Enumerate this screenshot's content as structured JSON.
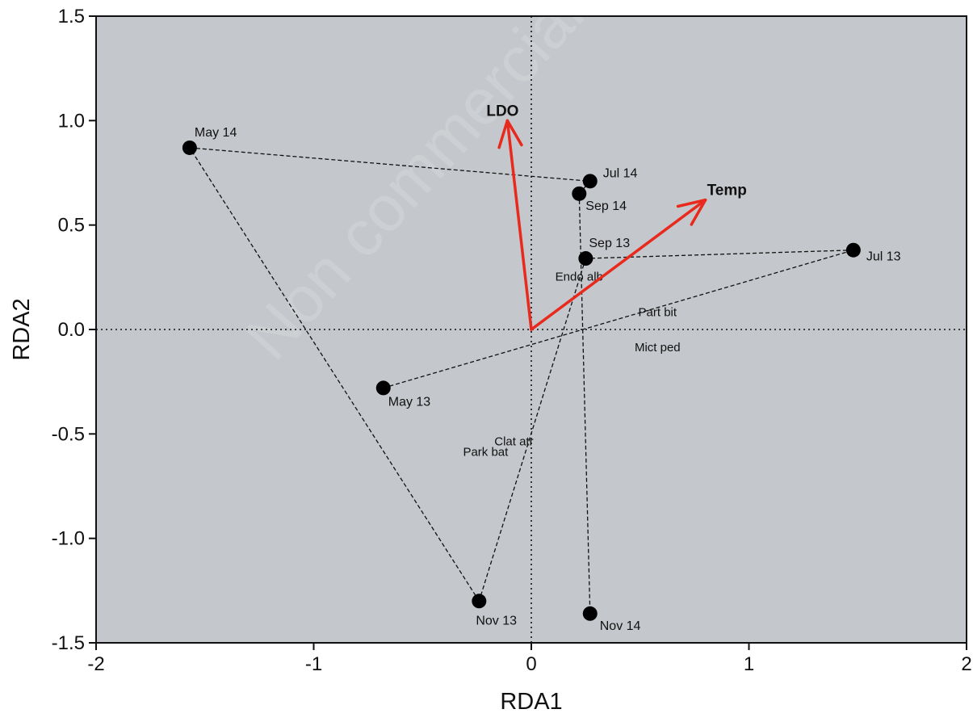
{
  "chart_data": {
    "type": "scatter",
    "xlabel": "RDA1",
    "ylabel": "RDA2",
    "xlim": [
      -2,
      2
    ],
    "ylim": [
      -1.5,
      1.5
    ],
    "x_ticks": [
      "-2",
      "-1",
      "0",
      "1",
      "2"
    ],
    "y_ticks": [
      "-1.5",
      "-1.0",
      "-0.5",
      "0.0",
      "0.5",
      "1.0",
      "1.5"
    ],
    "background": "#c4c7cb",
    "arrow_color": "#e8291e",
    "watermark": "Non commercial",
    "sites": [
      {
        "name": "May 13",
        "x": -0.68,
        "y": -0.28
      },
      {
        "name": "Jul 13",
        "x": 1.48,
        "y": 0.38
      },
      {
        "name": "Sep 13",
        "x": 0.25,
        "y": 0.34
      },
      {
        "name": "Nov 13",
        "x": -0.24,
        "y": -1.3
      },
      {
        "name": "May 14",
        "x": -1.57,
        "y": 0.87
      },
      {
        "name": "Jul 14",
        "x": 0.27,
        "y": 0.71
      },
      {
        "name": "Sep 14",
        "x": 0.22,
        "y": 0.65
      },
      {
        "name": "Nov 14",
        "x": 0.27,
        "y": -1.36
      }
    ],
    "trajectories": [
      [
        "May 13",
        "Jul 13",
        "Sep 13",
        "Nov 13"
      ],
      [
        "May 14",
        "Jul 14",
        "Sep 14",
        "Nov 14"
      ],
      [
        "Nov 13",
        "May 14"
      ]
    ],
    "species": [
      {
        "name": "Endo alb",
        "x": 0.22,
        "y": 0.25
      },
      {
        "name": "Part bit",
        "x": 0.58,
        "y": 0.08
      },
      {
        "name": "Mict ped",
        "x": 0.58,
        "y": -0.09
      },
      {
        "name": "Clat atr",
        "x": -0.08,
        "y": -0.54
      },
      {
        "name": "Park bat",
        "x": -0.21,
        "y": -0.59
      }
    ],
    "environment_vectors": [
      {
        "name": "LDO",
        "x": -0.11,
        "y": 1.0
      },
      {
        "name": "Temp",
        "x": 0.8,
        "y": 0.62
      }
    ]
  }
}
